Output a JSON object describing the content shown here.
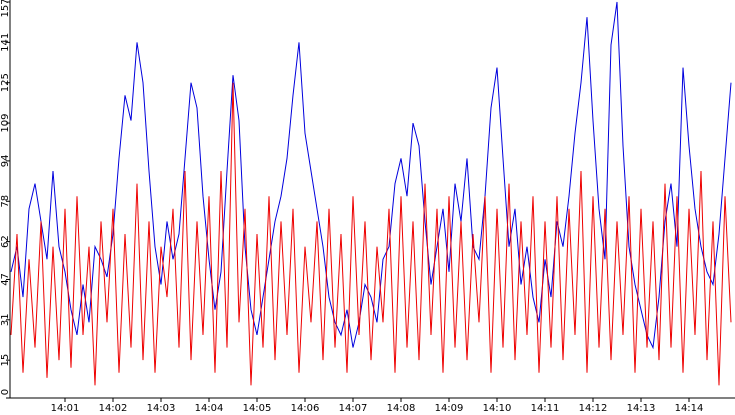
{
  "chart_data": {
    "type": "line",
    "categories": [
      null,
      null,
      null,
      null,
      null,
      null,
      null,
      null,
      null,
      "14:01",
      null,
      null,
      null,
      null,
      null,
      null,
      null,
      "14:02",
      null,
      null,
      null,
      null,
      null,
      null,
      null,
      "14:03",
      null,
      null,
      null,
      null,
      null,
      null,
      null,
      "14:04",
      null,
      null,
      null,
      null,
      null,
      null,
      null,
      "14:05",
      null,
      null,
      null,
      null,
      null,
      null,
      null,
      "14:06",
      null,
      null,
      null,
      null,
      null,
      null,
      null,
      "14:07",
      null,
      null,
      null,
      null,
      null,
      null,
      null,
      "14:08",
      null,
      null,
      null,
      null,
      null,
      null,
      null,
      "14:09",
      null,
      null,
      null,
      null,
      null,
      null,
      null,
      "14:10",
      null,
      null,
      null,
      null,
      null,
      null,
      null,
      "14:11",
      null,
      null,
      null,
      null,
      null,
      null,
      null,
      "14:12",
      null,
      null,
      null,
      null,
      null,
      null,
      null,
      "14:13",
      null,
      null,
      null,
      null,
      null,
      null,
      null,
      "14:14",
      null,
      null,
      null,
      null,
      null,
      null,
      null
    ],
    "series": [
      {
        "color": "#0000dd",
        "values": [
          50,
          60,
          40,
          75,
          85,
          70,
          55,
          90,
          60,
          50,
          35,
          25,
          45,
          30,
          60,
          55,
          48,
          65,
          95,
          120,
          110,
          141,
          125,
          90,
          60,
          45,
          70,
          55,
          65,
          95,
          125,
          115,
          80,
          55,
          35,
          50,
          90,
          128,
          110,
          60,
          35,
          25,
          40,
          55,
          70,
          80,
          95,
          120,
          141,
          105,
          90,
          75,
          60,
          40,
          30,
          25,
          35,
          20,
          30,
          45,
          40,
          30,
          55,
          60,
          85,
          95,
          80,
          109,
          100,
          70,
          45,
          60,
          75,
          50,
          85,
          70,
          95,
          60,
          55,
          80,
          115,
          131,
          95,
          60,
          75,
          45,
          60,
          40,
          30,
          55,
          40,
          70,
          60,
          80,
          105,
          125,
          151,
          110,
          75,
          55,
          140,
          157,
          100,
          60,
          45,
          35,
          25,
          20,
          40,
          70,
          85,
          60,
          131,
          100,
          75,
          60,
          50,
          45,
          65,
          95,
          125
        ]
      },
      {
        "color": "#ee0000",
        "values": [
          25,
          65,
          10,
          55,
          20,
          70,
          8,
          60,
          15,
          75,
          12,
          80,
          25,
          60,
          5,
          70,
          30,
          75,
          10,
          65,
          20,
          85,
          15,
          70,
          10,
          60,
          40,
          75,
          20,
          90,
          15,
          70,
          25,
          80,
          10,
          90,
          20,
          125,
          30,
          75,
          5,
          65,
          20,
          80,
          15,
          70,
          25,
          75,
          10,
          60,
          30,
          70,
          15,
          75,
          20,
          65,
          10,
          80,
          25,
          70,
          15,
          60,
          30,
          75,
          10,
          80,
          20,
          70,
          15,
          85,
          25,
          75,
          10,
          80,
          20,
          70,
          15,
          65,
          30,
          80,
          10,
          75,
          20,
          85,
          15,
          70,
          25,
          80,
          10,
          70,
          20,
          80,
          15,
          75,
          25,
          90,
          10,
          80,
          20,
          75,
          15,
          70,
          25,
          80,
          10,
          75,
          20,
          70,
          15,
          85,
          20,
          80,
          10,
          75,
          25,
          90,
          15,
          70,
          5,
          80,
          30
        ]
      }
    ],
    "ylim": [
      0,
      157
    ],
    "yticks": [
      0,
      15,
      31,
      47,
      62,
      78,
      94,
      109,
      125,
      141,
      157
    ],
    "grid": false
  }
}
